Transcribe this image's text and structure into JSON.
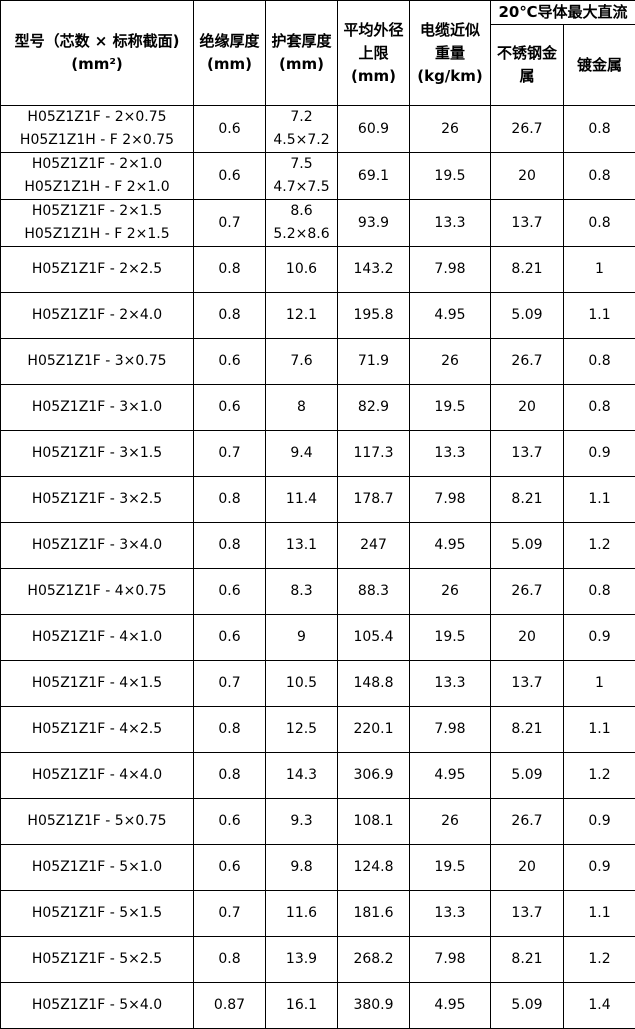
{
  "header": {
    "model": [
      "型号（芯数 × 标称截面)",
      "(mm²)"
    ],
    "insulation": [
      "绝缘厚度",
      "(mm)"
    ],
    "sheath": [
      "护套厚度",
      "(mm)"
    ],
    "outer_diameter": [
      "平均外径",
      "上限",
      "(mm)"
    ],
    "weight": [
      "电缆近似",
      "重量",
      "(kg/km)"
    ],
    "resistance_group": "20℃导体最大直流",
    "stainless": [
      "不锈钢金",
      "属"
    ],
    "plated": "镀金属"
  },
  "rows": [
    {
      "model": [
        "H05Z1Z1F - 2×0.75",
        "H05Z1Z1H - F 2×0.75"
      ],
      "insulation": "0.6",
      "sheath": [
        "7.2",
        "4.5×7.2"
      ],
      "diameter": "60.9",
      "weight": "26",
      "stainless": "26.7",
      "plated": "0.8"
    },
    {
      "model": [
        "H05Z1Z1F - 2×1.0",
        "H05Z1Z1H - F 2×1.0"
      ],
      "insulation": "0.6",
      "sheath": [
        "7.5",
        "4.7×7.5"
      ],
      "diameter": "69.1",
      "weight": "19.5",
      "stainless": "20",
      "plated": "0.8"
    },
    {
      "model": [
        "H05Z1Z1F - 2×1.5",
        "H05Z1Z1H - F 2×1.5"
      ],
      "insulation": "0.7",
      "sheath": [
        "8.6",
        "5.2×8.6"
      ],
      "diameter": "93.9",
      "weight": "13.3",
      "stainless": "13.7",
      "plated": "0.8"
    },
    {
      "model": [
        "H05Z1Z1F - 2×2.5"
      ],
      "insulation": "0.8",
      "sheath": [
        "10.6"
      ],
      "diameter": "143.2",
      "weight": "7.98",
      "stainless": "8.21",
      "plated": "1"
    },
    {
      "model": [
        "H05Z1Z1F - 2×4.0"
      ],
      "insulation": "0.8",
      "sheath": [
        "12.1"
      ],
      "diameter": "195.8",
      "weight": "4.95",
      "stainless": "5.09",
      "plated": "1.1"
    },
    {
      "model": [
        "H05Z1Z1F - 3×0.75"
      ],
      "insulation": "0.6",
      "sheath": [
        "7.6"
      ],
      "diameter": "71.9",
      "weight": "26",
      "stainless": "26.7",
      "plated": "0.8"
    },
    {
      "model": [
        "H05Z1Z1F - 3×1.0"
      ],
      "insulation": "0.6",
      "sheath": [
        "8"
      ],
      "diameter": "82.9",
      "weight": "19.5",
      "stainless": "20",
      "plated": "0.8"
    },
    {
      "model": [
        "H05Z1Z1F - 3×1.5"
      ],
      "insulation": "0.7",
      "sheath": [
        "9.4"
      ],
      "diameter": "117.3",
      "weight": "13.3",
      "stainless": "13.7",
      "plated": "0.9"
    },
    {
      "model": [
        "H05Z1Z1F - 3×2.5"
      ],
      "insulation": "0.8",
      "sheath": [
        "11.4"
      ],
      "diameter": "178.7",
      "weight": "7.98",
      "stainless": "8.21",
      "plated": "1.1"
    },
    {
      "model": [
        "H05Z1Z1F - 3×4.0"
      ],
      "insulation": "0.8",
      "sheath": [
        "13.1"
      ],
      "diameter": "247",
      "weight": "4.95",
      "stainless": "5.09",
      "plated": "1.2"
    },
    {
      "model": [
        "H05Z1Z1F - 4×0.75"
      ],
      "insulation": "0.6",
      "sheath": [
        "8.3"
      ],
      "diameter": "88.3",
      "weight": "26",
      "stainless": "26.7",
      "plated": "0.8"
    },
    {
      "model": [
        "H05Z1Z1F - 4×1.0"
      ],
      "insulation": "0.6",
      "sheath": [
        "9"
      ],
      "diameter": "105.4",
      "weight": "19.5",
      "stainless": "20",
      "plated": "0.9"
    },
    {
      "model": [
        "H05Z1Z1F - 4×1.5"
      ],
      "insulation": "0.7",
      "sheath": [
        "10.5"
      ],
      "diameter": "148.8",
      "weight": "13.3",
      "stainless": "13.7",
      "plated": "1"
    },
    {
      "model": [
        "H05Z1Z1F - 4×2.5"
      ],
      "insulation": "0.8",
      "sheath": [
        "12.5"
      ],
      "diameter": "220.1",
      "weight": "7.98",
      "stainless": "8.21",
      "plated": "1.1"
    },
    {
      "model": [
        "H05Z1Z1F - 4×4.0"
      ],
      "insulation": "0.8",
      "sheath": [
        "14.3"
      ],
      "diameter": "306.9",
      "weight": "4.95",
      "stainless": "5.09",
      "plated": "1.2"
    },
    {
      "model": [
        "H05Z1Z1F - 5×0.75"
      ],
      "insulation": "0.6",
      "sheath": [
        "9.3"
      ],
      "diameter": "108.1",
      "weight": "26",
      "stainless": "26.7",
      "plated": "0.9"
    },
    {
      "model": [
        "H05Z1Z1F - 5×1.0"
      ],
      "insulation": "0.6",
      "sheath": [
        "9.8"
      ],
      "diameter": "124.8",
      "weight": "19.5",
      "stainless": "20",
      "plated": "0.9"
    },
    {
      "model": [
        "H05Z1Z1F - 5×1.5"
      ],
      "insulation": "0.7",
      "sheath": [
        "11.6"
      ],
      "diameter": "181.6",
      "weight": "13.3",
      "stainless": "13.7",
      "plated": "1.1"
    },
    {
      "model": [
        "H05Z1Z1F - 5×2.5"
      ],
      "insulation": "0.8",
      "sheath": [
        "13.9"
      ],
      "diameter": "268.2",
      "weight": "7.98",
      "stainless": "8.21",
      "plated": "1.2"
    },
    {
      "model": [
        "H05Z1Z1F - 5×4.0"
      ],
      "insulation": "0.87",
      "sheath": [
        "16.1"
      ],
      "diameter": "380.9",
      "weight": "4.95",
      "stainless": "5.09",
      "plated": "1.4"
    }
  ]
}
